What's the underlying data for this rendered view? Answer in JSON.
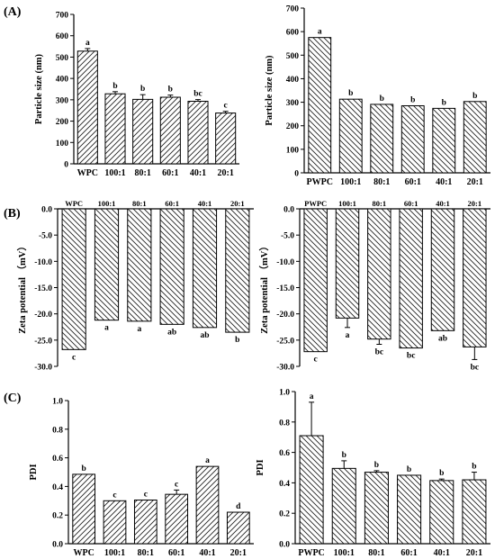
{
  "panels": [
    "(A)",
    "(B)",
    "(C)"
  ],
  "colors": {
    "bar_fill": "#ffffff",
    "hatch": "#222222",
    "axis": "#000000"
  },
  "chart_data": [
    {
      "type": "bar",
      "panel": "A-left",
      "categories": [
        "WPC",
        "100:1",
        "80:1",
        "60:1",
        "40:1",
        "20:1"
      ],
      "values": [
        528,
        328,
        302,
        312,
        293,
        238
      ],
      "errors": [
        12,
        10,
        22,
        10,
        8,
        8
      ],
      "letters": [
        "a",
        "b",
        "b",
        "b",
        "bc",
        "c"
      ],
      "ylabel": "Particle size (nm)",
      "ylim": [
        0,
        700
      ],
      "yticks": [
        0,
        100,
        200,
        300,
        400,
        500,
        600,
        700
      ],
      "hatch": "forward",
      "categories_position": "bottom"
    },
    {
      "type": "bar",
      "panel": "A-right",
      "categories": [
        "PWPC",
        "100:1",
        "80:1",
        "60:1",
        "40:1",
        "20:1"
      ],
      "values": [
        575,
        313,
        291,
        285,
        274,
        303
      ],
      "errors": [
        0,
        0,
        0,
        0,
        0,
        0
      ],
      "letters": [
        "a",
        "b",
        "b",
        "b",
        "b",
        "b"
      ],
      "ylabel": "Particle size (nm)",
      "ylim": [
        0,
        700
      ],
      "yticks": [
        0,
        100,
        200,
        300,
        400,
        500,
        600,
        700
      ],
      "hatch": "back",
      "categories_position": "bottom"
    },
    {
      "type": "bar",
      "panel": "B-left",
      "categories": [
        "WPC",
        "100:1",
        "80:1",
        "60:1",
        "40:1",
        "20:1"
      ],
      "values": [
        -26.8,
        -21.2,
        -21.4,
        -22.0,
        -22.6,
        -23.5
      ],
      "errors": [
        0,
        0,
        0,
        0,
        0,
        0
      ],
      "letters": [
        "c",
        "a",
        "a",
        "ab",
        "ab",
        "b"
      ],
      "ylabel": "Zeta potential （mV）",
      "ylim": [
        -30,
        0
      ],
      "yticks": [
        0,
        -5,
        -10,
        -15,
        -20,
        -25,
        -30
      ],
      "hatch": "back",
      "categories_position": "top"
    },
    {
      "type": "bar",
      "panel": "B-right",
      "categories": [
        "PWPC",
        "100:1",
        "80:1",
        "60:1",
        "40:1",
        "20:1"
      ],
      "values": [
        -27.2,
        -20.8,
        -24.8,
        -26.5,
        -23.2,
        -26.3
      ],
      "errors": [
        0,
        1.8,
        1.0,
        0,
        0,
        2.4
      ],
      "letters": [
        "c",
        "a",
        "bc",
        "bc",
        "ab",
        "bc"
      ],
      "ylabel": "Zeta potential （mV）",
      "ylim": [
        -30,
        0
      ],
      "yticks": [
        0,
        -5,
        -10,
        -15,
        -20,
        -25,
        -30
      ],
      "hatch": "back",
      "categories_position": "top"
    },
    {
      "type": "bar",
      "panel": "C-left",
      "categories": [
        "WPC",
        "100:1",
        "80:1",
        "60:1",
        "40:1",
        "20:1"
      ],
      "values": [
        0.485,
        0.3,
        0.305,
        0.345,
        0.54,
        0.22
      ],
      "errors": [
        0,
        0,
        0,
        0.03,
        0,
        0
      ],
      "letters": [
        "b",
        "c",
        "c",
        "c",
        "a",
        "d"
      ],
      "ylabel": "PDI",
      "ylim": [
        0,
        1.0
      ],
      "yticks": [
        0.0,
        0.2,
        0.4,
        0.6,
        0.8,
        1.0
      ],
      "hatch": "forward",
      "categories_position": "bottom"
    },
    {
      "type": "bar",
      "panel": "C-right",
      "categories": [
        "PWPC",
        "100:1",
        "80:1",
        "60:1",
        "40:1",
        "20:1"
      ],
      "values": [
        0.71,
        0.495,
        0.47,
        0.45,
        0.415,
        0.42
      ],
      "errors": [
        0.22,
        0.05,
        0.01,
        0,
        0.01,
        0.05
      ],
      "letters": [
        "a",
        "b",
        "b",
        "b",
        "b",
        "b"
      ],
      "ylabel": "PDI",
      "ylim": [
        0,
        1.0
      ],
      "yticks": [
        0.0,
        0.2,
        0.4,
        0.6,
        0.8,
        1.0
      ],
      "hatch": "back",
      "categories_position": "bottom"
    }
  ]
}
